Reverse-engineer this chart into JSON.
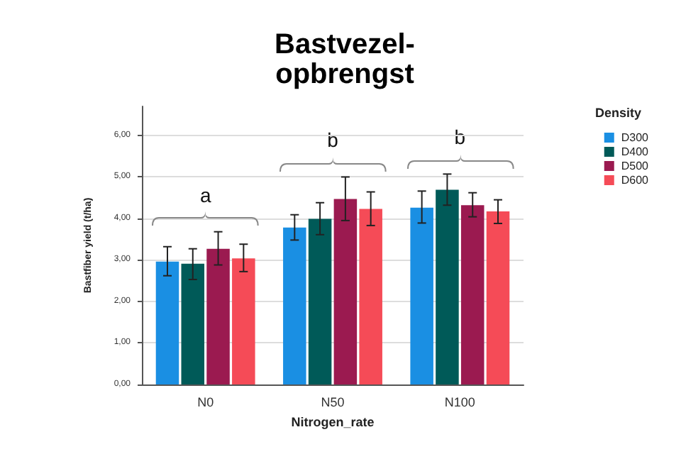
{
  "chart_data": {
    "type": "bar",
    "title": "Bastvezel-\nopbrengst",
    "xlabel": "Nitrogen_rate",
    "ylabel": "Bastfiber yield (t/ha)",
    "legend_title": "Density",
    "categories": [
      "N0",
      "N50",
      "N100"
    ],
    "series": [
      {
        "name": "D300",
        "color": "#1a8fe3",
        "values": [
          2.96,
          3.78,
          4.26
        ],
        "errors": [
          [
            2.62,
            3.32
          ],
          [
            3.48,
            4.09
          ],
          [
            3.89,
            4.66
          ]
        ]
      },
      {
        "name": "D400",
        "color": "#005a58",
        "values": [
          2.91,
          3.99,
          4.69
        ],
        "errors": [
          [
            2.53,
            3.27
          ],
          [
            3.61,
            4.38
          ],
          [
            4.32,
            5.07
          ]
        ]
      },
      {
        "name": "D500",
        "color": "#9b1a50",
        "values": [
          3.27,
          4.47,
          4.32
        ],
        "errors": [
          [
            2.88,
            3.68
          ],
          [
            3.95,
            5.0
          ],
          [
            4.04,
            4.62
          ]
        ]
      },
      {
        "name": "D600",
        "color": "#f54b57",
        "values": [
          3.04,
          4.23,
          4.17
        ],
        "errors": [
          [
            2.72,
            3.38
          ],
          [
            3.83,
            4.64
          ],
          [
            3.88,
            4.45
          ]
        ]
      }
    ],
    "ylim": [
      0,
      6.7
    ],
    "yticks": [
      {
        "value": 0,
        "label": "0,00"
      },
      {
        "value": 1,
        "label": "1,00"
      },
      {
        "value": 2,
        "label": "2,00"
      },
      {
        "value": 3,
        "label": "3,00"
      },
      {
        "value": 4,
        "label": "4,00"
      },
      {
        "value": 5,
        "label": "5,00"
      },
      {
        "value": 6,
        "label": "6,00"
      }
    ],
    "annotations": [
      "a",
      "b",
      "b"
    ],
    "grid": "y",
    "legend": "top right"
  }
}
